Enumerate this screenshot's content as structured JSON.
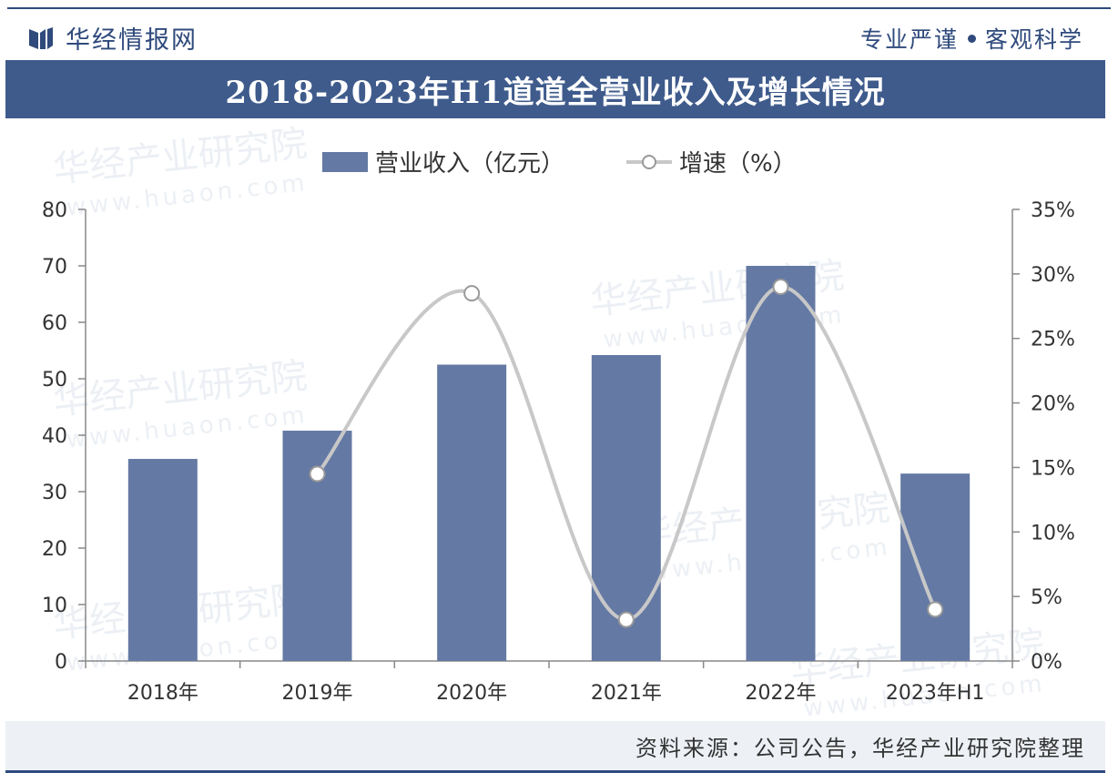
{
  "header": {
    "brand": "华经情报网",
    "slogan_left": "专业严谨",
    "slogan_right": "客观科学"
  },
  "title": "2018-2023年H1道道全营业收入及增长情况",
  "watermark": {
    "text": "华经产业研究院",
    "url": "www.huaon.com"
  },
  "footer": {
    "source": "资料来源：公司公告，华经产业研究院整理"
  },
  "colors": {
    "bar": "#6479a3",
    "line": "#c8c8c8",
    "title_bg": "#3f5b8c",
    "brand": "#2f4a7c"
  },
  "chart_data": {
    "type": "bar",
    "title": "2018-2023年H1道道全营业收入及增长情况",
    "categories": [
      "2018年",
      "2019年",
      "2020年",
      "2021年",
      "2022年",
      "2023年H1"
    ],
    "series": [
      {
        "name": "营业收入（亿元）",
        "type": "bar",
        "axis": "left",
        "values": [
          35.8,
          40.8,
          52.5,
          54.2,
          70.0,
          33.2
        ]
      },
      {
        "name": "增速（%）",
        "type": "line",
        "axis": "right",
        "values": [
          null,
          14.5,
          28.5,
          3.2,
          29.0,
          4.0
        ]
      }
    ],
    "left_axis": {
      "min": 0,
      "max": 80,
      "step": 10,
      "ticks": [
        "0",
        "10",
        "20",
        "30",
        "40",
        "50",
        "60",
        "70",
        "80"
      ]
    },
    "right_axis": {
      "min": 0,
      "max": 35,
      "step": 5,
      "ticks": [
        "0%",
        "5%",
        "10%",
        "15%",
        "20%",
        "25%",
        "30%",
        "35%"
      ]
    },
    "legend": {
      "position": "top-center",
      "items": [
        "营业收入（亿元）",
        "增速（%）"
      ]
    },
    "grid": false
  }
}
